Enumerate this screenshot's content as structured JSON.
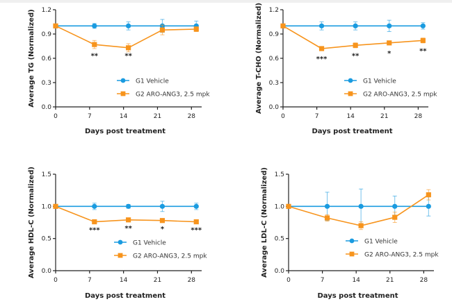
{
  "colors": {
    "vehicle": "#1a9be0",
    "treatment": "#f7941d",
    "axis": "#222222"
  },
  "chart_data": [
    {
      "type": "line",
      "id": "tg",
      "title": "",
      "xlabel": "Days post treatment",
      "ylabel": "Average TG (Normalized)",
      "xlim": [
        0,
        30
      ],
      "ylim": [
        0,
        1.2
      ],
      "xticks": [
        0,
        7,
        14,
        21,
        28
      ],
      "yticks": [
        0.0,
        0.3,
        0.6,
        0.9,
        1.2
      ],
      "ytick_labels": [
        "0.0",
        "0.3",
        "0.6",
        "0.9",
        "1.2"
      ],
      "legend": "center-right",
      "x": [
        0,
        8,
        15,
        22,
        29
      ],
      "series": [
        {
          "name": "G1 Vehicle",
          "marker": "circle",
          "values": [
            1.0,
            1.0,
            1.0,
            1.0,
            1.0
          ],
          "errors": [
            0.0,
            0.03,
            0.05,
            0.08,
            0.06
          ]
        },
        {
          "name": "G2 ARO-ANG3, 2.5 mpk",
          "marker": "square",
          "values": [
            1.0,
            0.77,
            0.73,
            0.95,
            0.96
          ],
          "errors": [
            0.0,
            0.05,
            0.05,
            0.06,
            0.03
          ]
        }
      ],
      "annotations": [
        {
          "x": 8,
          "text": "**",
          "y": 0.64
        },
        {
          "x": 15,
          "text": "**",
          "y": 0.64
        }
      ]
    },
    {
      "type": "line",
      "id": "tcho",
      "title": "",
      "xlabel": "Days post treatment",
      "ylabel": "Average T-CHO (Normalized)",
      "xlim": [
        0,
        30
      ],
      "ylim": [
        0,
        1.2
      ],
      "xticks": [
        0,
        7,
        14,
        21,
        28
      ],
      "yticks": [
        0.0,
        0.3,
        0.6,
        0.9,
        1.2
      ],
      "ytick_labels": [
        "0.0",
        "0.3",
        "0.6",
        "0.9",
        "1.2"
      ],
      "legend": "center-right",
      "x": [
        0,
        8,
        15,
        22,
        29
      ],
      "series": [
        {
          "name": "G1 Vehicle",
          "marker": "circle",
          "values": [
            1.0,
            1.0,
            1.0,
            1.0,
            1.0
          ],
          "errors": [
            0.0,
            0.05,
            0.05,
            0.07,
            0.04
          ]
        },
        {
          "name": "G2 ARO-ANG3, 2.5 mpk",
          "marker": "square",
          "values": [
            1.0,
            0.72,
            0.76,
            0.79,
            0.82
          ],
          "errors": [
            0.0,
            0.01,
            0.03,
            0.02,
            0.03
          ]
        }
      ],
      "annotations": [
        {
          "x": 8,
          "text": "***",
          "y": 0.6
        },
        {
          "x": 15,
          "text": "**",
          "y": 0.64
        },
        {
          "x": 22,
          "text": "*",
          "y": 0.67
        },
        {
          "x": 29,
          "text": "**",
          "y": 0.7
        }
      ]
    },
    {
      "type": "line",
      "id": "hdlc",
      "title": "",
      "xlabel": "Days post treatment",
      "ylabel": "Average HDL-C (Normalized)",
      "xlim": [
        0,
        30
      ],
      "ylim": [
        0,
        1.5
      ],
      "xticks": [
        0,
        7,
        14,
        21,
        28
      ],
      "yticks": [
        0.0,
        0.5,
        1.0,
        1.5
      ],
      "ytick_labels": [
        "0.0",
        "0.5",
        "1.0",
        "1.5"
      ],
      "legend": "center-right",
      "x": [
        0,
        8,
        15,
        22,
        29
      ],
      "series": [
        {
          "name": "G1 Vehicle",
          "marker": "circle",
          "values": [
            1.0,
            1.0,
            1.0,
            1.0,
            1.0
          ],
          "errors": [
            0.0,
            0.05,
            0.03,
            0.08,
            0.05
          ]
        },
        {
          "name": "G2 ARO-ANG3, 2.5 mpk",
          "marker": "square",
          "values": [
            1.0,
            0.76,
            0.79,
            0.78,
            0.76
          ],
          "errors": [
            0.0,
            0.02,
            0.03,
            0.02,
            0.02
          ]
        }
      ],
      "annotations": [
        {
          "x": 8,
          "text": "***",
          "y": 0.64
        },
        {
          "x": 15,
          "text": "**",
          "y": 0.67
        },
        {
          "x": 22,
          "text": "*",
          "y": 0.66
        },
        {
          "x": 29,
          "text": "***",
          "y": 0.64
        }
      ]
    },
    {
      "type": "line",
      "id": "ldlc",
      "title": "",
      "xlabel": "Days post treatment",
      "ylabel": "Average LDL-C (Normalized)",
      "xlim": [
        0,
        30
      ],
      "ylim": [
        0,
        1.5
      ],
      "xticks": [
        0,
        7,
        14,
        21,
        28
      ],
      "yticks": [
        0.0,
        0.5,
        1.0,
        1.5
      ],
      "ytick_labels": [
        "0.0",
        "0.5",
        "1.0",
        "1.5"
      ],
      "legend": "center-right",
      "x": [
        0,
        8,
        15,
        22,
        29
      ],
      "series": [
        {
          "name": "G1 Vehicle",
          "marker": "circle",
          "values": [
            1.0,
            1.0,
            1.0,
            1.0,
            1.0
          ],
          "errors": [
            0.0,
            0.22,
            0.27,
            0.16,
            0.15
          ]
        },
        {
          "name": "G2 ARO-ANG3, 2.5 mpk",
          "marker": "square",
          "values": [
            1.0,
            0.82,
            0.7,
            0.83,
            1.18
          ],
          "errors": [
            0.0,
            0.05,
            0.06,
            0.08,
            0.08
          ]
        }
      ],
      "annotations": []
    }
  ]
}
